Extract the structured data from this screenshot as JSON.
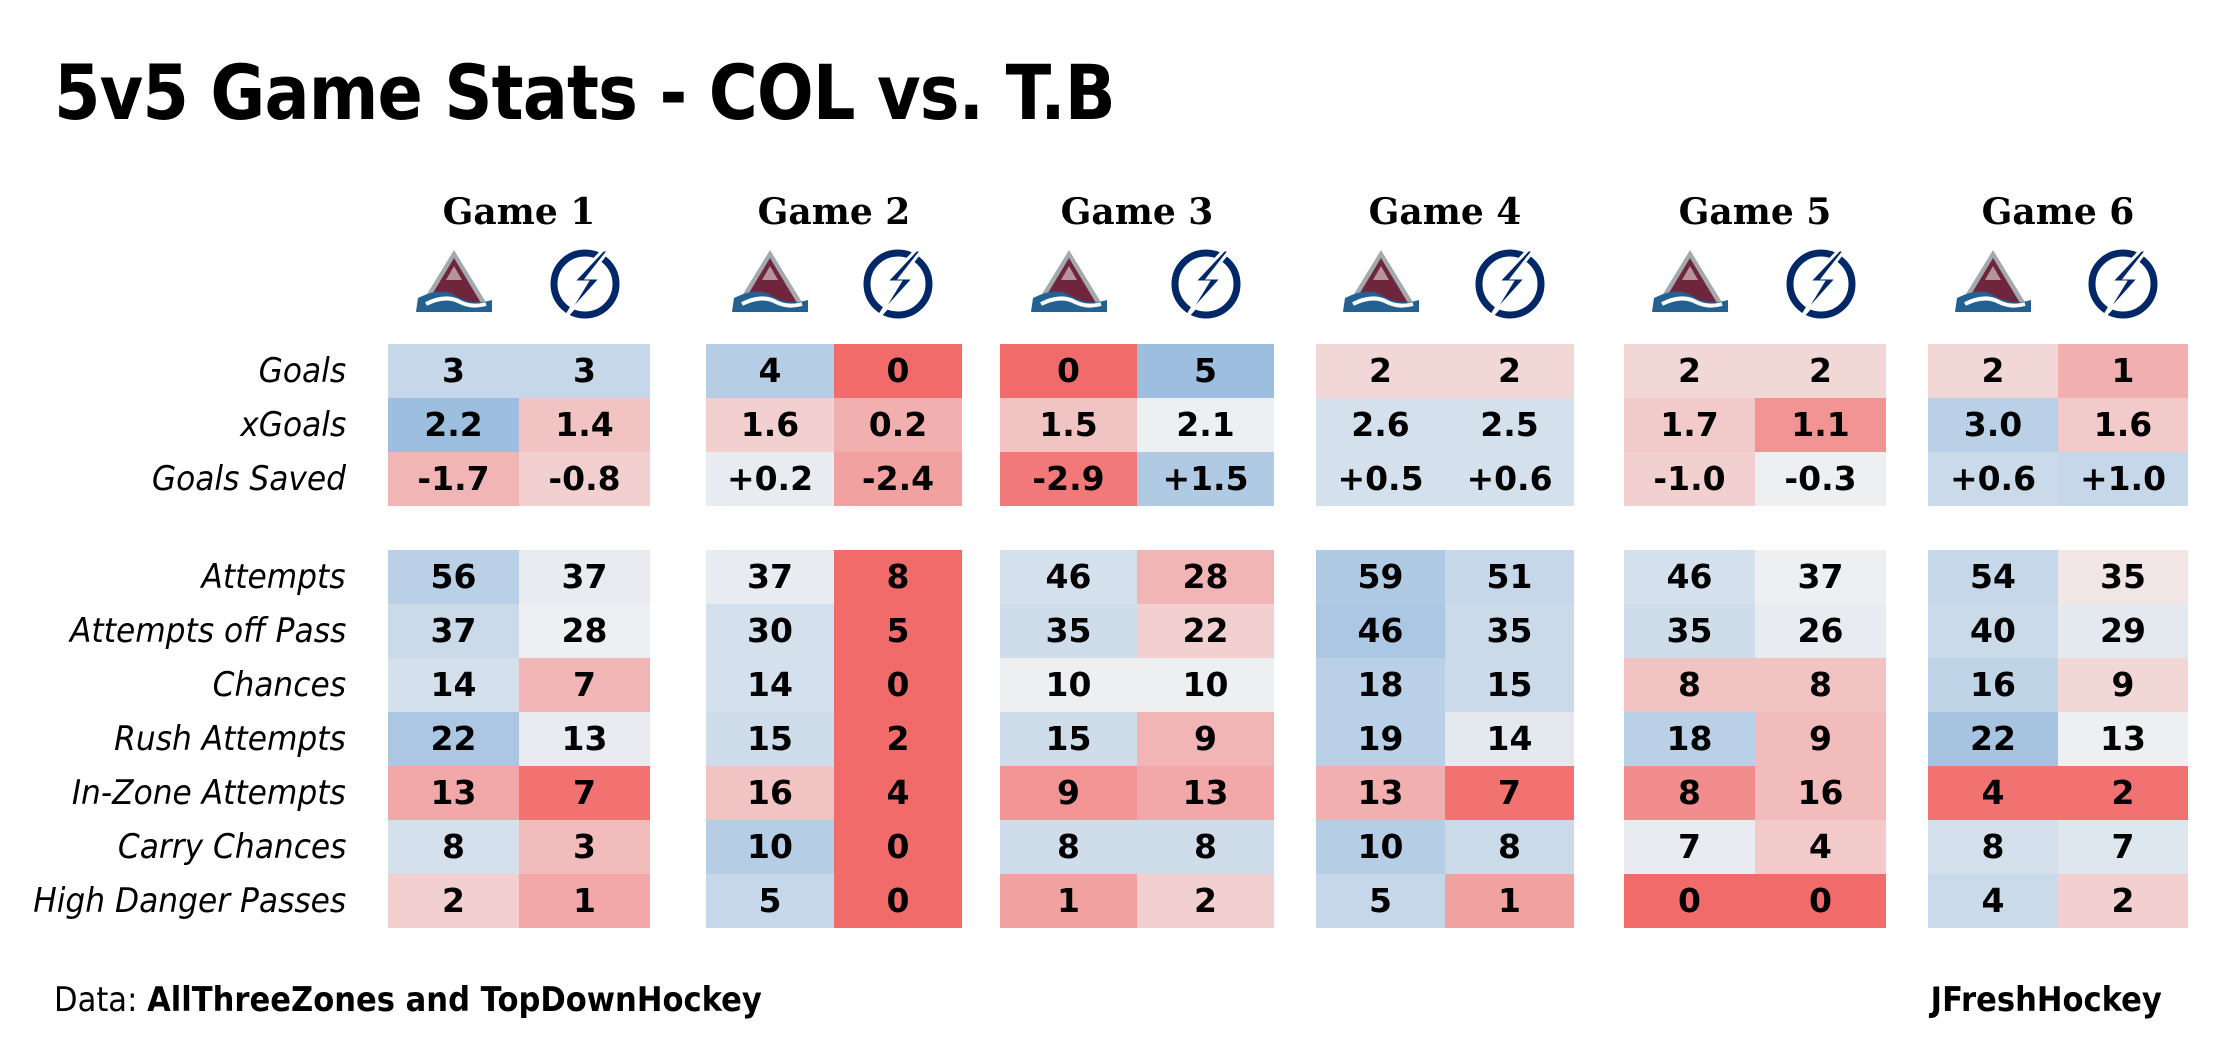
{
  "title": "5v5 Game Stats - COL vs. T.B",
  "footer": {
    "data_prefix": "Data: ",
    "data_source": "AllThreeZones and TopDownHockey",
    "credit": "JFreshHockey"
  },
  "logos": {
    "col": {
      "name": "avalanche-logo-icon",
      "color": "#6F263D",
      "accent": "#236192"
    },
    "tb": {
      "name": "lightning-logo-icon",
      "color": "#002868"
    }
  },
  "chart_data": {
    "type": "table",
    "title": "5v5 Game Stats - COL vs. T.B",
    "teams": [
      "COL",
      "T.B"
    ],
    "games": [
      "Game 1",
      "Game 2",
      "Game 3",
      "Game 4",
      "Game 5",
      "Game 6"
    ],
    "metrics": [
      "Goals",
      "xGoals",
      "Goals Saved",
      "Attempts",
      "Attempts off Pass",
      "Chances",
      "Rush Attempts",
      "In-Zone Attempts",
      "Carry Chances",
      "High Danger Passes"
    ],
    "color_scale": {
      "low": "#f26b6b",
      "mid": "#f2f2f2",
      "high": "#8db5dc"
    },
    "values": [
      [
        [
          "3",
          "3"
        ],
        [
          "2.2",
          "1.4"
        ],
        [
          "-1.7",
          "-0.8"
        ],
        [
          "56",
          "37"
        ],
        [
          "37",
          "28"
        ],
        [
          "14",
          "7"
        ],
        [
          "22",
          "13"
        ],
        [
          "13",
          "7"
        ],
        [
          "8",
          "3"
        ],
        [
          "2",
          "1"
        ]
      ],
      [
        [
          "4",
          "0"
        ],
        [
          "1.6",
          "0.2"
        ],
        [
          "+0.2",
          "-2.4"
        ],
        [
          "37",
          "8"
        ],
        [
          "30",
          "5"
        ],
        [
          "14",
          "0"
        ],
        [
          "15",
          "2"
        ],
        [
          "16",
          "4"
        ],
        [
          "10",
          "0"
        ],
        [
          "5",
          "0"
        ]
      ],
      [
        [
          "0",
          "5"
        ],
        [
          "1.5",
          "2.1"
        ],
        [
          "-2.9",
          "+1.5"
        ],
        [
          "46",
          "28"
        ],
        [
          "35",
          "22"
        ],
        [
          "10",
          "10"
        ],
        [
          "15",
          "9"
        ],
        [
          "9",
          "13"
        ],
        [
          "8",
          "8"
        ],
        [
          "1",
          "2"
        ]
      ],
      [
        [
          "2",
          "2"
        ],
        [
          "2.6",
          "2.5"
        ],
        [
          "+0.5",
          "+0.6"
        ],
        [
          "59",
          "51"
        ],
        [
          "46",
          "35"
        ],
        [
          "18",
          "15"
        ],
        [
          "19",
          "14"
        ],
        [
          "13",
          "7"
        ],
        [
          "10",
          "8"
        ],
        [
          "5",
          "1"
        ]
      ],
      [
        [
          "2",
          "2"
        ],
        [
          "1.7",
          "1.1"
        ],
        [
          "-1.0",
          "-0.3"
        ],
        [
          "46",
          "37"
        ],
        [
          "35",
          "26"
        ],
        [
          "8",
          "8"
        ],
        [
          "18",
          "9"
        ],
        [
          "8",
          "16"
        ],
        [
          "7",
          "4"
        ],
        [
          "0",
          "0"
        ]
      ],
      [
        [
          "2",
          "1"
        ],
        [
          "3.0",
          "1.6"
        ],
        [
          "+0.6",
          "+1.0"
        ],
        [
          "54",
          "35"
        ],
        [
          "40",
          "29"
        ],
        [
          "16",
          "9"
        ],
        [
          "22",
          "13"
        ],
        [
          "4",
          "2"
        ],
        [
          "8",
          "7"
        ],
        [
          "4",
          "2"
        ]
      ]
    ],
    "color_values": [
      [
        [
          0.45,
          0.45
        ],
        [
          0.85,
          -0.35
        ],
        [
          -0.45,
          -0.25
        ],
        [
          0.55,
          0.1
        ],
        [
          0.4,
          0.05
        ],
        [
          0.3,
          -0.45
        ],
        [
          0.7,
          0.1
        ],
        [
          -0.55,
          -0.95
        ],
        [
          0.3,
          -0.4
        ],
        [
          -0.25,
          -0.55
        ]
      ],
      [
        [
          0.6,
          -1.0
        ],
        [
          -0.25,
          -0.5
        ],
        [
          0.1,
          -0.6
        ],
        [
          0.1,
          -1.0
        ],
        [
          0.3,
          -1.0
        ],
        [
          0.3,
          -1.0
        ],
        [
          0.35,
          -1.0
        ],
        [
          -0.35,
          -1.0
        ],
        [
          0.6,
          -1.0
        ],
        [
          0.45,
          -1.0
        ]
      ],
      [
        [
          -1.0,
          0.85
        ],
        [
          -0.35,
          0.05
        ],
        [
          -0.9,
          0.65
        ],
        [
          0.3,
          -0.45
        ],
        [
          0.35,
          -0.25
        ],
        [
          0.05,
          0.05
        ],
        [
          0.35,
          -0.45
        ],
        [
          -0.7,
          -0.55
        ],
        [
          0.35,
          0.35
        ],
        [
          -0.6,
          -0.25
        ]
      ],
      [
        [
          -0.2,
          -0.2
        ],
        [
          0.3,
          0.3
        ],
        [
          0.3,
          0.3
        ],
        [
          0.65,
          0.45
        ],
        [
          0.7,
          0.4
        ],
        [
          0.55,
          0.4
        ],
        [
          0.55,
          0.15
        ],
        [
          -0.5,
          -0.95
        ],
        [
          0.6,
          0.4
        ],
        [
          0.45,
          -0.6
        ]
      ],
      [
        [
          -0.2,
          -0.2
        ],
        [
          -0.3,
          -0.7
        ],
        [
          -0.25,
          0.05
        ],
        [
          0.3,
          0.05
        ],
        [
          0.35,
          0.1
        ],
        [
          -0.35,
          -0.35
        ],
        [
          0.55,
          -0.4
        ],
        [
          -0.75,
          -0.4
        ],
        [
          0.1,
          -0.3
        ],
        [
          -1.0,
          -1.0
        ]
      ],
      [
        [
          -0.2,
          -0.5
        ],
        [
          0.55,
          -0.3
        ],
        [
          0.4,
          0.45
        ],
        [
          0.45,
          -0.1
        ],
        [
          0.4,
          0.15
        ],
        [
          0.5,
          -0.2
        ],
        [
          0.75,
          0.05
        ],
        [
          -0.95,
          -0.95
        ],
        [
          0.3,
          0.2
        ],
        [
          0.4,
          -0.25
        ]
      ]
    ]
  }
}
